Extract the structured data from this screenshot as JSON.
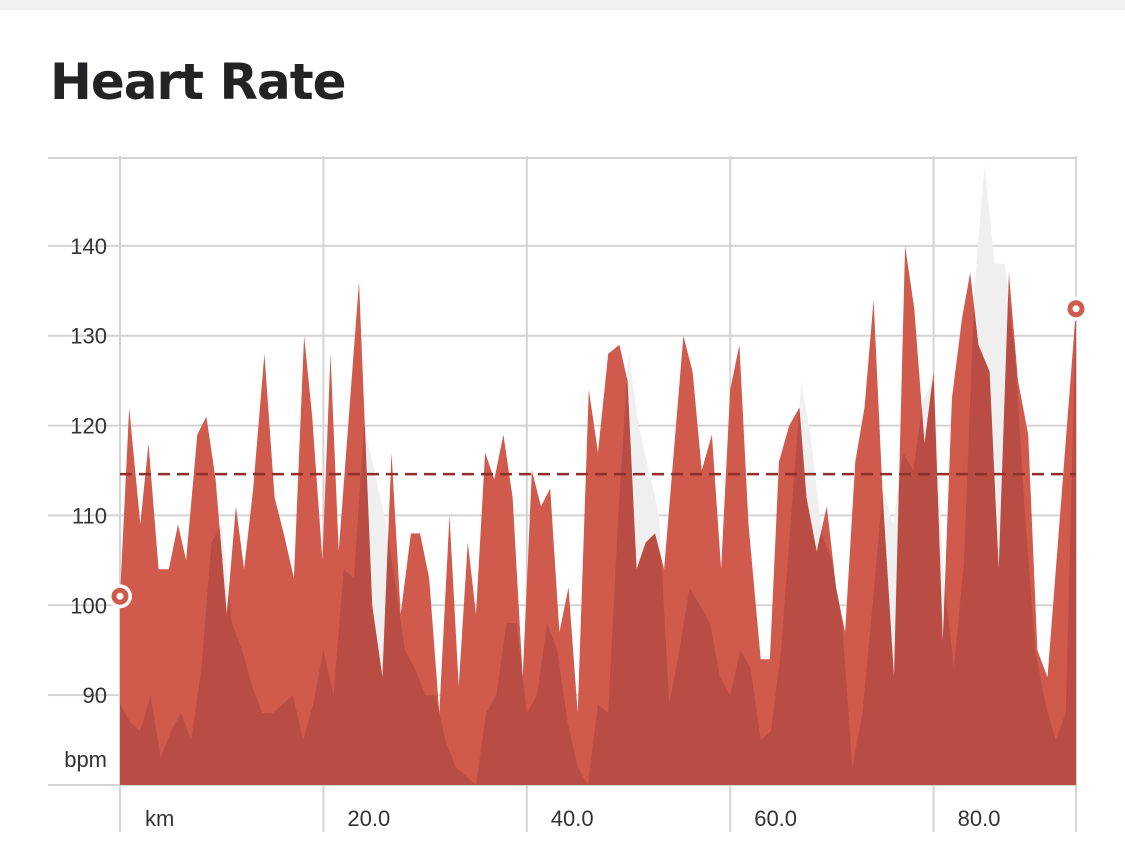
{
  "header": {
    "title": "Heart Rate"
  },
  "chart_data": {
    "type": "area",
    "ylabel": "bpm",
    "xlabel": "km",
    "x_range": [
      0,
      94
    ],
    "ylim": [
      80,
      150
    ],
    "y_ticks": [
      90,
      100,
      110,
      120,
      130,
      140
    ],
    "x_ticks": [
      20.0,
      40.0,
      60.0,
      80.0
    ],
    "x_tick_labels": [
      "20.0",
      "40.0",
      "60.0",
      "80.0"
    ],
    "grid": true,
    "average_line": {
      "value": 114.6,
      "style": "dashed"
    },
    "start_marker": {
      "x": 0,
      "y": 101
    },
    "end_marker": {
      "x": 94,
      "y": 133
    },
    "series": [
      {
        "role": "primary",
        "color": "#d05a4c",
        "points": [
          [
            0,
            101
          ],
          [
            0.9,
            122
          ],
          [
            2,
            109
          ],
          [
            2.8,
            118
          ],
          [
            3.8,
            104
          ],
          [
            4.8,
            104
          ],
          [
            5.7,
            109
          ],
          [
            6.5,
            105
          ],
          [
            7.6,
            119
          ],
          [
            8.5,
            121
          ],
          [
            9.4,
            114
          ],
          [
            10.5,
            99
          ],
          [
            11.4,
            111
          ],
          [
            12.2,
            104
          ],
          [
            13.1,
            113
          ],
          [
            14.2,
            128
          ],
          [
            15.2,
            112
          ],
          [
            16.1,
            108
          ],
          [
            17.1,
            103
          ],
          [
            18.1,
            130
          ],
          [
            18.9,
            121
          ],
          [
            19.9,
            105
          ],
          [
            20.7,
            128
          ],
          [
            21.5,
            106
          ],
          [
            23.5,
            136
          ],
          [
            24.8,
            100
          ],
          [
            25.8,
            92
          ],
          [
            26.7,
            117
          ],
          [
            27.6,
            99
          ],
          [
            28.6,
            108
          ],
          [
            29.5,
            108
          ],
          [
            30.4,
            103
          ],
          [
            31.4,
            88
          ],
          [
            32.4,
            110
          ],
          [
            33.3,
            91
          ],
          [
            34.2,
            107
          ],
          [
            35,
            99
          ],
          [
            35.9,
            117
          ],
          [
            36.8,
            114
          ],
          [
            37.7,
            119
          ],
          [
            38.6,
            112
          ],
          [
            39.6,
            92
          ],
          [
            40.5,
            115
          ],
          [
            41.4,
            111
          ],
          [
            42.3,
            113
          ],
          [
            43.2,
            97
          ],
          [
            44.1,
            102
          ],
          [
            45,
            88
          ],
          [
            46.1,
            124
          ],
          [
            47,
            117
          ],
          [
            48,
            128
          ],
          [
            49.1,
            129
          ],
          [
            49.9,
            125
          ],
          [
            50.8,
            104
          ],
          [
            51.7,
            107
          ],
          [
            52.6,
            108
          ],
          [
            53.5,
            104
          ],
          [
            55.4,
            130
          ],
          [
            56.3,
            126
          ],
          [
            57.2,
            115
          ],
          [
            58.2,
            119
          ],
          [
            59.1,
            104
          ],
          [
            60,
            124
          ],
          [
            60.9,
            129
          ],
          [
            61.8,
            109
          ],
          [
            63,
            94
          ],
          [
            63.9,
            94
          ],
          [
            64.8,
            116
          ],
          [
            65.8,
            120
          ],
          [
            66.8,
            122
          ],
          [
            67.5,
            112
          ],
          [
            68.5,
            106
          ],
          [
            69.5,
            111
          ],
          [
            70.4,
            102
          ],
          [
            71.3,
            97
          ],
          [
            72.3,
            116
          ],
          [
            73.2,
            122
          ],
          [
            74.1,
            134
          ],
          [
            75,
            112
          ],
          [
            76.1,
            92
          ],
          [
            77.2,
            140
          ],
          [
            78.1,
            133
          ],
          [
            79.1,
            118
          ],
          [
            80,
            126
          ],
          [
            80.9,
            96
          ],
          [
            81.8,
            123
          ],
          [
            82.8,
            132
          ],
          [
            83.6,
            137
          ],
          [
            84.4,
            129
          ],
          [
            85.5,
            126
          ],
          [
            86.4,
            104
          ],
          [
            87.4,
            137
          ],
          [
            88.3,
            125
          ],
          [
            89.3,
            119
          ],
          [
            90.2,
            95
          ],
          [
            91.2,
            92
          ],
          [
            94,
            133
          ]
        ]
      },
      {
        "role": "comparison",
        "color": "#efefef",
        "points": [
          [
            0,
            89
          ],
          [
            1,
            87
          ],
          [
            2,
            86
          ],
          [
            3,
            90
          ],
          [
            4,
            83
          ],
          [
            5,
            86
          ],
          [
            6,
            88
          ],
          [
            7,
            85
          ],
          [
            8,
            93
          ],
          [
            9,
            107
          ],
          [
            10,
            109
          ],
          [
            11,
            98
          ],
          [
            12,
            95
          ],
          [
            13,
            91
          ],
          [
            14,
            88
          ],
          [
            15,
            88
          ],
          [
            16,
            89
          ],
          [
            17,
            90
          ],
          [
            18,
            85
          ],
          [
            19,
            89
          ],
          [
            20,
            95
          ],
          [
            21,
            90
          ],
          [
            22,
            104
          ],
          [
            23,
            103
          ],
          [
            24,
            120
          ],
          [
            25,
            115
          ],
          [
            26,
            110
          ],
          [
            27,
            103
          ],
          [
            28,
            95
          ],
          [
            29,
            93
          ],
          [
            30,
            90
          ],
          [
            31,
            90
          ],
          [
            32,
            85
          ],
          [
            33,
            82
          ],
          [
            34,
            81
          ],
          [
            35,
            80
          ],
          [
            36,
            88
          ],
          [
            37,
            90
          ],
          [
            38,
            98
          ],
          [
            39,
            98
          ],
          [
            40,
            88
          ],
          [
            41,
            90
          ],
          [
            42,
            98
          ],
          [
            43,
            95
          ],
          [
            44,
            87
          ],
          [
            45,
            82
          ],
          [
            46,
            80
          ],
          [
            47,
            89
          ],
          [
            48,
            88
          ],
          [
            49,
            110
          ],
          [
            50,
            128
          ],
          [
            51,
            120
          ],
          [
            52,
            115
          ],
          [
            53,
            110
          ],
          [
            54,
            89
          ],
          [
            55,
            95
          ],
          [
            56,
            102
          ],
          [
            57,
            100
          ],
          [
            58,
            98
          ],
          [
            59,
            92
          ],
          [
            60,
            90
          ],
          [
            61,
            95
          ],
          [
            62,
            93
          ],
          [
            63,
            85
          ],
          [
            64,
            86
          ],
          [
            65,
            95
          ],
          [
            66,
            110
          ],
          [
            67,
            125
          ],
          [
            68,
            118
          ],
          [
            69,
            108
          ],
          [
            70,
            105
          ],
          [
            71,
            98
          ],
          [
            72,
            82
          ],
          [
            73,
            88
          ],
          [
            74,
            100
          ],
          [
            75,
            113
          ],
          [
            76,
            109
          ],
          [
            77,
            117
          ],
          [
            78,
            115
          ],
          [
            79,
            123
          ],
          [
            80,
            125
          ],
          [
            81,
            103
          ],
          [
            82,
            93
          ],
          [
            83,
            105
          ],
          [
            84,
            135
          ],
          [
            85,
            149
          ],
          [
            86,
            138
          ],
          [
            87,
            138
          ],
          [
            88,
            128
          ],
          [
            89,
            110
          ],
          [
            90,
            95
          ],
          [
            91,
            89
          ],
          [
            92,
            85
          ],
          [
            93,
            88
          ],
          [
            94,
            133
          ]
        ]
      }
    ]
  }
}
